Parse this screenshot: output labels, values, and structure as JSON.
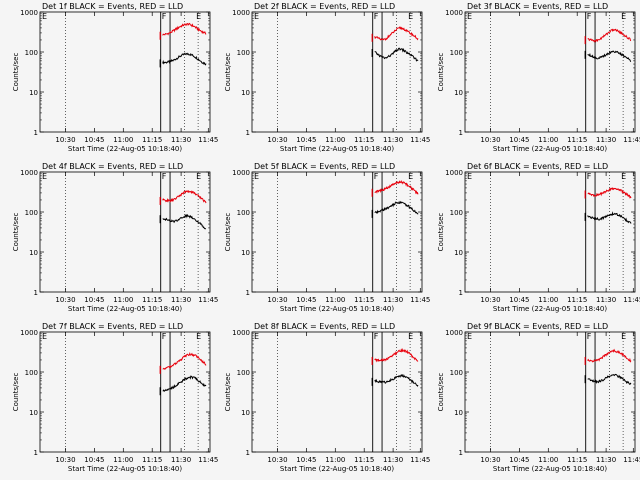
{
  "chart_data": [
    {
      "type": "line",
      "title": "Det 1f BLACK = Events, RED = LLD",
      "xlabel": "Start Time (22-Aug-05 10:18:40)",
      "ylabel": "Counts/sec",
      "yscale": "log",
      "ylim": [
        1,
        1000
      ],
      "x_ticks": [
        "10:30",
        "10:45",
        "11:00",
        "11:15",
        "11:30",
        "11:45"
      ],
      "y_ticks": [
        "1",
        "10",
        "100",
        "1000"
      ],
      "markers": [
        "E",
        "F",
        "E"
      ],
      "series": [
        {
          "color": "#000000",
          "start": 55,
          "values": [
            55,
            55,
            58,
            62,
            70,
            80,
            88,
            90,
            85,
            75,
            65,
            55,
            50
          ]
        },
        {
          "color": "#e8000c",
          "start": 270,
          "values": [
            270,
            280,
            300,
            340,
            390,
            440,
            480,
            500,
            470,
            420,
            360,
            320,
            290
          ]
        }
      ]
    },
    {
      "type": "line",
      "title": "Det 2f BLACK = Events, RED = LLD",
      "xlabel": "Start Time (22-Aug-05 10:18:40)",
      "ylabel": "Counts/sec",
      "yscale": "log",
      "ylim": [
        1,
        1000
      ],
      "x_ticks": [
        "10:30",
        "10:45",
        "11:00",
        "11:15",
        "11:30",
        "11:45"
      ],
      "y_ticks": [
        "1",
        "10",
        "100",
        "1000"
      ],
      "markers": [
        "E",
        "F",
        "E"
      ],
      "series": [
        {
          "color": "#000000",
          "start": 100,
          "values": [
            100,
            85,
            75,
            70,
            78,
            90,
            110,
            120,
            110,
            95,
            85,
            70,
            60
          ]
        },
        {
          "color": "#e8000c",
          "start": 240,
          "values": [
            240,
            220,
            200,
            210,
            250,
            300,
            360,
            400,
            380,
            330,
            290,
            250,
            210
          ]
        }
      ]
    },
    {
      "type": "line",
      "title": "Det 3f BLACK = Events, RED = LLD",
      "xlabel": "Start Time (22-Aug-05 10:18:40)",
      "ylabel": "Counts/sec",
      "yscale": "log",
      "ylim": [
        1,
        1000
      ],
      "x_ticks": [
        "10:30",
        "10:45",
        "11:00",
        "11:15",
        "11:30",
        "11:45"
      ],
      "y_ticks": [
        "1",
        "10",
        "100",
        "1000"
      ],
      "markers": [
        "E",
        "F",
        "E"
      ],
      "series": [
        {
          "color": "#000000",
          "start": 90,
          "values": [
            90,
            80,
            72,
            70,
            75,
            85,
            95,
            105,
            100,
            90,
            80,
            70,
            60
          ]
        },
        {
          "color": "#e8000c",
          "start": 210,
          "values": [
            210,
            200,
            190,
            200,
            230,
            270,
            320,
            360,
            350,
            310,
            270,
            230,
            200
          ]
        }
      ]
    },
    {
      "type": "line",
      "title": "Det 4f BLACK = Events, RED = LLD",
      "xlabel": "Start Time (22-Aug-05 10:18:40)",
      "ylabel": "Counts/sec",
      "yscale": "log",
      "ylim": [
        1,
        1000
      ],
      "x_ticks": [
        "10:30",
        "10:45",
        "11:00",
        "11:15",
        "11:30",
        "11:45"
      ],
      "y_ticks": [
        "1",
        "10",
        "100",
        "1000"
      ],
      "markers": [
        "E",
        "F",
        "E"
      ],
      "series": [
        {
          "color": "#000000",
          "start": 70,
          "values": [
            70,
            65,
            60,
            58,
            62,
            70,
            78,
            80,
            75,
            65,
            55,
            45,
            38
          ]
        },
        {
          "color": "#e8000c",
          "start": 200,
          "values": [
            200,
            195,
            190,
            200,
            230,
            270,
            310,
            330,
            320,
            290,
            250,
            210,
            170
          ]
        }
      ]
    },
    {
      "type": "line",
      "title": "Det 5f BLACK = Events, RED = LLD",
      "xlabel": "Start Time (22-Aug-05 10:18:40)",
      "ylabel": "Counts/sec",
      "yscale": "log",
      "ylim": [
        1,
        1000
      ],
      "x_ticks": [
        "10:30",
        "10:45",
        "11:00",
        "11:15",
        "11:30",
        "11:45"
      ],
      "y_ticks": [
        "1",
        "10",
        "100",
        "1000"
      ],
      "markers": [
        "E",
        "F",
        "E"
      ],
      "series": [
        {
          "color": "#000000",
          "start": 95,
          "values": [
            95,
            100,
            110,
            120,
            130,
            150,
            170,
            175,
            165,
            145,
            125,
            105,
            90
          ]
        },
        {
          "color": "#e8000c",
          "start": 320,
          "values": [
            320,
            330,
            350,
            380,
            420,
            480,
            540,
            570,
            540,
            480,
            410,
            340,
            290
          ]
        }
      ]
    },
    {
      "type": "line",
      "title": "Det 6f BLACK = Events, RED = LLD",
      "xlabel": "Start Time (22-Aug-05 10:18:40)",
      "ylabel": "Counts/sec",
      "yscale": "log",
      "ylim": [
        1,
        1000
      ],
      "x_ticks": [
        "10:30",
        "10:45",
        "11:00",
        "11:15",
        "11:30",
        "11:45"
      ],
      "y_ticks": [
        "1",
        "10",
        "100",
        "1000"
      ],
      "markers": [
        "E",
        "F",
        "E"
      ],
      "series": [
        {
          "color": "#000000",
          "start": 80,
          "values": [
            80,
            72,
            68,
            66,
            70,
            76,
            84,
            90,
            88,
            80,
            70,
            60,
            52
          ]
        },
        {
          "color": "#e8000c",
          "start": 290,
          "values": [
            290,
            270,
            260,
            270,
            290,
            320,
            360,
            390,
            380,
            350,
            310,
            270,
            230
          ]
        }
      ]
    },
    {
      "type": "line",
      "title": "Det 7f BLACK = Events, RED = LLD",
      "xlabel": "Start Time (22-Aug-05 10:18:40)",
      "ylabel": "Counts/sec",
      "yscale": "log",
      "ylim": [
        1,
        1000
      ],
      "x_ticks": [
        "10:30",
        "10:45",
        "11:00",
        "11:15",
        "11:30",
        "11:45"
      ],
      "y_ticks": [
        "1",
        "10",
        "100",
        "1000"
      ],
      "markers": [
        "E",
        "F",
        "E"
      ],
      "series": [
        {
          "color": "#000000",
          "start": 35,
          "values": [
            35,
            36,
            38,
            42,
            48,
            56,
            65,
            72,
            75,
            70,
            60,
            50,
            44
          ]
        },
        {
          "color": "#e8000c",
          "start": 120,
          "values": [
            120,
            125,
            135,
            150,
            170,
            200,
            240,
            270,
            280,
            260,
            220,
            185,
            155
          ]
        }
      ]
    },
    {
      "type": "line",
      "title": "Det 8f BLACK = Events, RED = LLD",
      "xlabel": "Start Time (22-Aug-05 10:18:40)",
      "ylabel": "Counts/sec",
      "yscale": "log",
      "ylim": [
        1,
        1000
      ],
      "x_ticks": [
        "10:30",
        "10:45",
        "11:00",
        "11:15",
        "11:30",
        "11:45"
      ],
      "y_ticks": [
        "1",
        "10",
        "100",
        "1000"
      ],
      "markers": [
        "E",
        "F",
        "E"
      ],
      "series": [
        {
          "color": "#000000",
          "start": 60,
          "values": [
            60,
            58,
            56,
            56,
            60,
            66,
            74,
            80,
            80,
            72,
            62,
            52,
            45
          ]
        },
        {
          "color": "#e8000c",
          "start": 200,
          "values": [
            200,
            195,
            195,
            205,
            225,
            260,
            300,
            340,
            350,
            320,
            270,
            220,
            190
          ]
        }
      ]
    },
    {
      "type": "line",
      "title": "Det 9f BLACK = Events, RED = LLD",
      "xlabel": "Start Time (22-Aug-05 10:18:40)",
      "ylabel": "Counts/sec",
      "yscale": "log",
      "ylim": [
        1,
        1000
      ],
      "x_ticks": [
        "10:30",
        "10:45",
        "11:00",
        "11:15",
        "11:30",
        "11:45"
      ],
      "y_ticks": [
        "1",
        "10",
        "100",
        "1000"
      ],
      "markers": [
        "E",
        "F",
        "E"
      ],
      "series": [
        {
          "color": "#000000",
          "start": 70,
          "values": [
            70,
            62,
            58,
            58,
            62,
            70,
            78,
            84,
            82,
            74,
            64,
            55,
            48
          ]
        },
        {
          "color": "#e8000c",
          "start": 200,
          "values": [
            200,
            190,
            190,
            200,
            230,
            270,
            310,
            340,
            330,
            300,
            260,
            220,
            185
          ]
        }
      ]
    }
  ]
}
